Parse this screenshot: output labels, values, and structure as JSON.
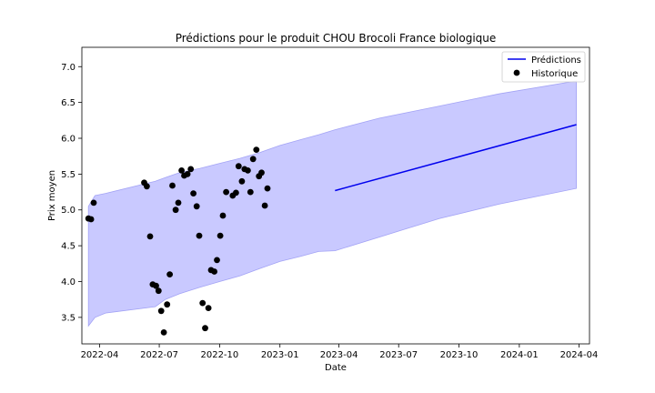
{
  "chart_data": {
    "type": "line",
    "title": "Prédictions pour le produit CHOU Brocoli France biologique",
    "xlabel": "Date",
    "ylabel": "Prix moyen",
    "xlim": [
      "2022-03-05",
      "2024-04-17"
    ],
    "ylim": [
      3.13,
      7.27
    ],
    "x_ticks": [
      "2022-04-01",
      "2022-07-01",
      "2022-10-01",
      "2023-01-01",
      "2023-04-01",
      "2023-07-01",
      "2023-10-01",
      "2024-01-01",
      "2024-04-01"
    ],
    "x_tick_labels": [
      "2022-04",
      "2022-07",
      "2022-10",
      "2023-01",
      "2023-04",
      "2023-07",
      "2023-10",
      "2024-01",
      "2024-04"
    ],
    "y_ticks": [
      3.5,
      4.0,
      4.5,
      5.0,
      5.5,
      6.0,
      6.5,
      7.0
    ],
    "y_tick_labels": [
      "3.5",
      "4.0",
      "4.5",
      "5.0",
      "5.5",
      "6.0",
      "6.5",
      "7.0"
    ],
    "legend": {
      "position": "top-right",
      "entries": [
        "Prédictions",
        "Historique"
      ]
    },
    "colors": {
      "prediction": "#0000ee",
      "band_fill": "#c9c9ff",
      "band_edge": "#a3a3f5",
      "history": "#000000"
    },
    "prediction": {
      "name": "Prédictions",
      "x": [
        "2023-03-26",
        "2024-03-28"
      ],
      "y": [
        5.27,
        6.19
      ]
    },
    "interval": {
      "x": [
        "2022-03-15",
        "2022-03-25",
        "2022-04-10",
        "2022-06-25",
        "2022-07-10",
        "2022-08-01",
        "2022-09-01",
        "2022-10-01",
        "2022-11-01",
        "2022-12-01",
        "2023-01-01",
        "2023-02-01",
        "2023-03-01",
        "2023-03-26",
        "2023-06-01",
        "2023-09-01",
        "2023-12-01",
        "2024-03-28"
      ],
      "upper": [
        5.05,
        5.2,
        5.23,
        5.4,
        5.45,
        5.52,
        5.58,
        5.65,
        5.72,
        5.8,
        5.9,
        5.98,
        6.05,
        6.12,
        6.28,
        6.45,
        6.62,
        6.8
      ],
      "lower": [
        3.38,
        3.5,
        3.56,
        3.65,
        3.75,
        3.83,
        3.92,
        4.0,
        4.08,
        4.18,
        4.28,
        4.35,
        4.42,
        4.43,
        4.62,
        4.88,
        5.08,
        5.3
      ]
    },
    "history": {
      "name": "Historique",
      "points": [
        [
          "2022-03-15",
          4.88
        ],
        [
          "2022-03-19",
          4.87
        ],
        [
          "2022-03-23",
          5.1
        ],
        [
          "2022-06-08",
          5.38
        ],
        [
          "2022-06-12",
          5.33
        ],
        [
          "2022-06-17",
          4.63
        ],
        [
          "2022-06-21",
          3.96
        ],
        [
          "2022-06-26",
          3.94
        ],
        [
          "2022-06-30",
          3.87
        ],
        [
          "2022-07-04",
          3.59
        ],
        [
          "2022-07-08",
          3.29
        ],
        [
          "2022-07-13",
          3.68
        ],
        [
          "2022-07-17",
          4.1
        ],
        [
          "2022-07-21",
          5.34
        ],
        [
          "2022-07-26",
          5.0
        ],
        [
          "2022-07-30",
          5.1
        ],
        [
          "2022-08-04",
          5.55
        ],
        [
          "2022-08-08",
          5.48
        ],
        [
          "2022-08-13",
          5.5
        ],
        [
          "2022-08-18",
          5.57
        ],
        [
          "2022-08-22",
          5.23
        ],
        [
          "2022-08-27",
          5.05
        ],
        [
          "2022-08-31",
          4.64
        ],
        [
          "2022-09-05",
          3.7
        ],
        [
          "2022-09-09",
          3.35
        ],
        [
          "2022-09-14",
          3.63
        ],
        [
          "2022-09-18",
          4.16
        ],
        [
          "2022-09-23",
          4.14
        ],
        [
          "2022-09-27",
          4.3
        ],
        [
          "2022-10-02",
          4.64
        ],
        [
          "2022-10-06",
          4.92
        ],
        [
          "2022-10-11",
          5.25
        ],
        [
          "2022-10-21",
          5.2
        ],
        [
          "2022-10-26",
          5.24
        ],
        [
          "2022-10-30",
          5.61
        ],
        [
          "2022-11-04",
          5.4
        ],
        [
          "2022-11-08",
          5.57
        ],
        [
          "2022-11-13",
          5.55
        ],
        [
          "2022-11-17",
          5.25
        ],
        [
          "2022-11-21",
          5.71
        ],
        [
          "2022-11-26",
          5.84
        ],
        [
          "2022-11-30",
          5.47
        ],
        [
          "2022-12-04",
          5.52
        ],
        [
          "2022-12-09",
          5.06
        ],
        [
          "2022-12-13",
          5.3
        ]
      ]
    }
  }
}
